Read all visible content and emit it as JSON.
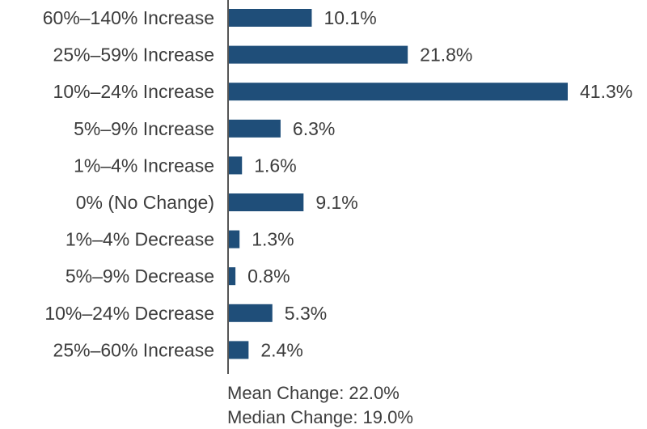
{
  "chart_data": {
    "type": "bar",
    "orientation": "horizontal",
    "categories": [
      "60%–140% Increase",
      "25%–59% Increase",
      "10%–24% Increase",
      "5%–9% Increase",
      "1%–4% Increase",
      "0% (No Change)",
      "1%–4% Decrease",
      "5%–9% Decrease",
      "10%–24% Decrease",
      "25%–60% Increase"
    ],
    "values": [
      10.1,
      21.8,
      41.3,
      6.3,
      1.6,
      9.1,
      1.3,
      0.8,
      5.3,
      2.4
    ],
    "value_labels": [
      "10.1%",
      "21.8%",
      "41.3%",
      "6.3%",
      "1.6%",
      "9.1%",
      "1.3%",
      "0.8%",
      "5.3%",
      "2.4%"
    ],
    "bar_color": "#1f4e79",
    "grid": false,
    "legend": "none",
    "xlim": [
      0,
      41.3
    ]
  },
  "summary": {
    "mean": "Mean Change: 22.0%",
    "median": "Median Change: 19.0%"
  }
}
